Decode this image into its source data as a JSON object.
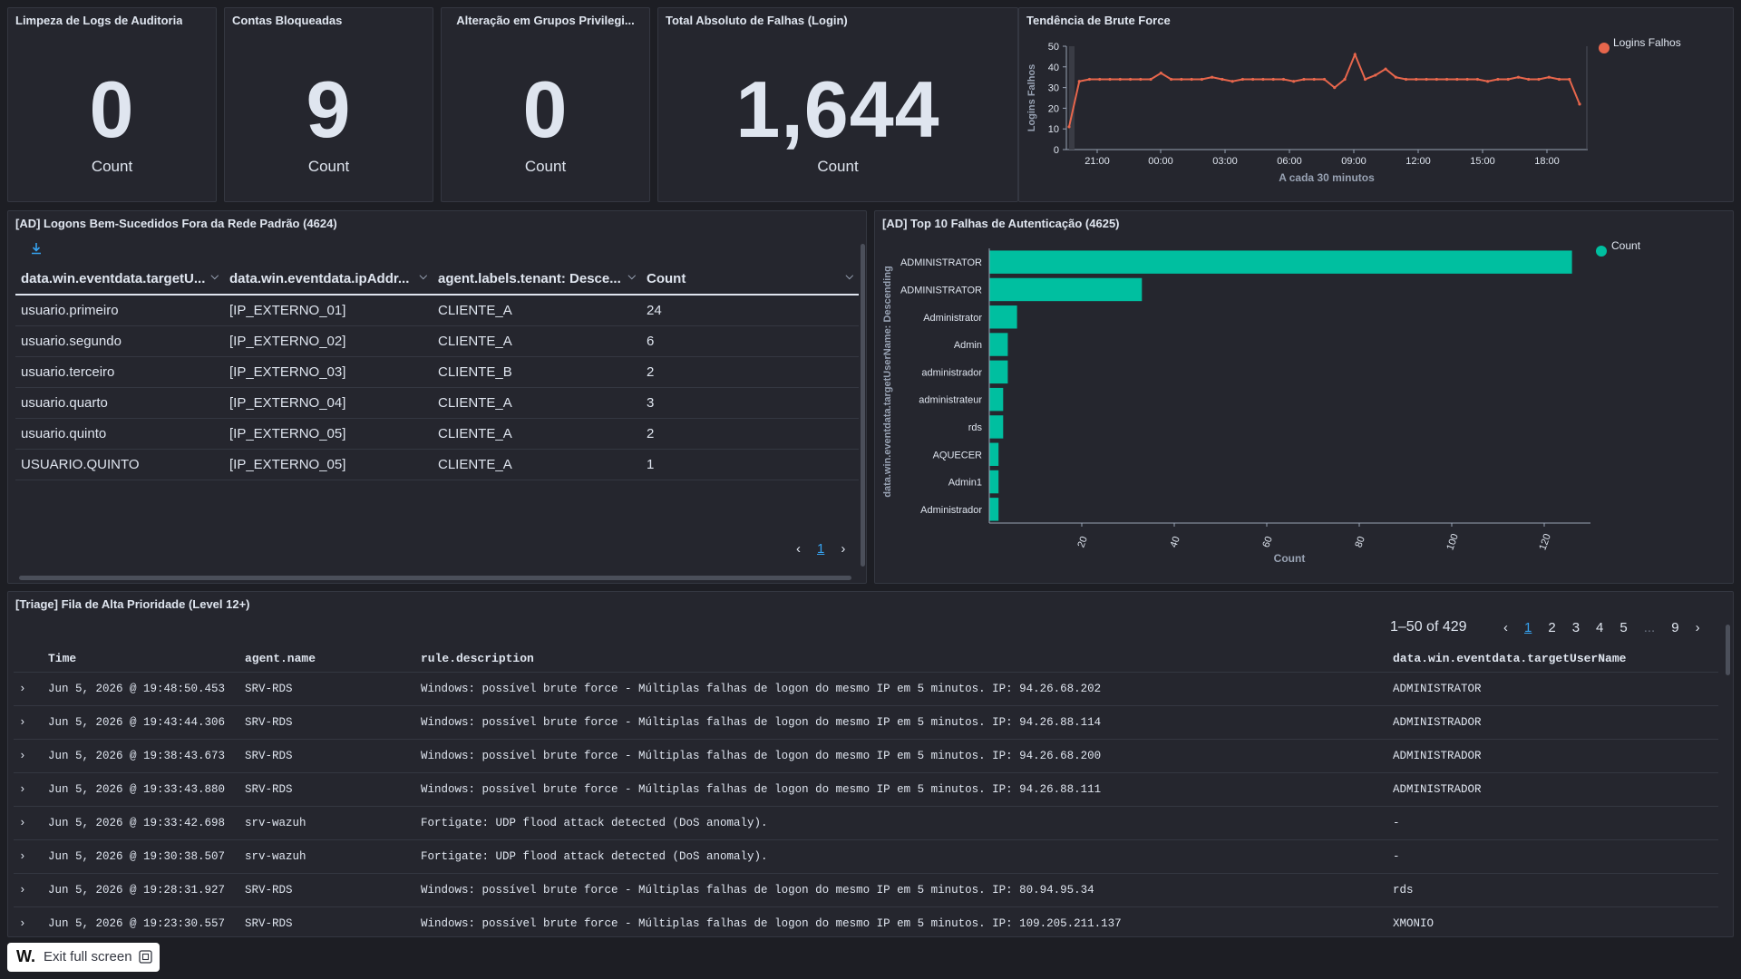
{
  "metrics": [
    {
      "title": "Limpeza de Logs de Auditoria",
      "value": "0",
      "label": "Count"
    },
    {
      "title": "Contas Bloqueadas",
      "value": "9",
      "label": "Count"
    },
    {
      "title": "Alteração em Grupos Privilegi...",
      "value": "0",
      "label": "Count"
    },
    {
      "title": "Total Absoluto de Falhas (Login)",
      "value": "1,644",
      "label": "Count"
    }
  ],
  "trend": {
    "title": "Tendência de Brute Force",
    "legend": "Logins Falhos",
    "ylabel": "Logins Falhos",
    "xlabel": "A cada 30 minutos",
    "color": "#e7664c"
  },
  "logons": {
    "title": "[AD] Logons Bem-Sucedidos Fora da Rede Padrão (4624)",
    "columns": [
      "data.win.eventdata.targetU...",
      "data.win.eventdata.ipAddr...",
      "agent.labels.tenant: Desce...",
      "Count"
    ],
    "rows": [
      [
        "usuario.primeiro",
        "[IP_EXTERNO_01]",
        "CLIENTE_A",
        "24"
      ],
      [
        "usuario.segundo",
        "[IP_EXTERNO_02]",
        "CLIENTE_A",
        "6"
      ],
      [
        "usuario.terceiro",
        "[IP_EXTERNO_03]",
        "CLIENTE_B",
        "2"
      ],
      [
        "usuario.quarto",
        "[IP_EXTERNO_04]",
        "CLIENTE_A",
        "3"
      ],
      [
        "usuario.quinto",
        "[IP_EXTERNO_05]",
        "CLIENTE_A",
        "2"
      ],
      [
        "USUARIO.QUINTO",
        "[IP_EXTERNO_05]",
        "CLIENTE_A",
        "1"
      ]
    ],
    "page": "1"
  },
  "top10": {
    "title": "[AD] Top 10 Falhas de Autenticação (4625)",
    "legend": "Count",
    "ylabel": "data.win.eventdata.targetUserName: Descending",
    "xlabel": "Count",
    "color": "#00bfa0"
  },
  "triage": {
    "title": "[Triage] Fila de Alta Prioridade (Level 12+)",
    "range": "1–50 of 429",
    "pages": [
      "1",
      "2",
      "3",
      "4",
      "5",
      "...",
      "9"
    ],
    "columns": [
      "Time",
      "agent.name",
      "rule.description",
      "data.win.eventdata.targetUserName"
    ],
    "rows": [
      [
        "Jun 5, 2026 @ 19:48:50.453",
        "SRV-RDS",
        "Windows: possível brute force - Múltiplas falhas de logon do mesmo IP em 5 minutos. IP: 94.26.68.202",
        "ADMINISTRATOR"
      ],
      [
        "Jun 5, 2026 @ 19:43:44.306",
        "SRV-RDS",
        "Windows: possível brute force - Múltiplas falhas de logon do mesmo IP em 5 minutos. IP: 94.26.88.114",
        "ADMINISTRADOR"
      ],
      [
        "Jun 5, 2026 @ 19:38:43.673",
        "SRV-RDS",
        "Windows: possível brute force - Múltiplas falhas de logon do mesmo IP em 5 minutos. IP: 94.26.68.200",
        "ADMINISTRADOR"
      ],
      [
        "Jun 5, 2026 @ 19:33:43.880",
        "SRV-RDS",
        "Windows: possível brute force - Múltiplas falhas de logon do mesmo IP em 5 minutos. IP: 94.26.88.111",
        "ADMINISTRADOR"
      ],
      [
        "Jun 5, 2026 @ 19:33:42.698",
        "srv-wazuh",
        "Fortigate: UDP flood attack detected (DoS anomaly).",
        " -"
      ],
      [
        "Jun 5, 2026 @ 19:30:38.507",
        "srv-wazuh",
        "Fortigate: UDP flood attack detected (DoS anomaly).",
        " -"
      ],
      [
        "Jun 5, 2026 @ 19:28:31.927",
        "SRV-RDS",
        "Windows: possível brute force - Múltiplas falhas de logon do mesmo IP em 5 minutos. IP: 80.94.95.34",
        "rds"
      ],
      [
        "Jun 5, 2026 @ 19:23:30.557",
        "SRV-RDS",
        "Windows: possível brute force - Múltiplas falhas de logon do mesmo IP em 5 minutos. IP: 109.205.211.137",
        "XMONIO"
      ]
    ]
  },
  "exit_fullscreen": {
    "logo": "W.",
    "label": "Exit full screen"
  },
  "chart_data": [
    {
      "type": "line",
      "title": "Tendência de Brute Force",
      "xlabel": "A cada 30 minutos",
      "ylabel": "Logins Falhos",
      "ylim": [
        0,
        50
      ],
      "yticks": [
        0,
        10,
        20,
        30,
        40,
        50
      ],
      "xticks": [
        "21:00",
        "00:00",
        "03:00",
        "06:00",
        "09:00",
        "12:00",
        "15:00",
        "18:00"
      ],
      "series": [
        {
          "name": "Logins Falhos",
          "values": [
            11,
            33,
            34,
            34,
            34,
            34,
            34,
            34,
            34,
            37,
            34,
            34,
            34,
            34,
            35,
            34,
            33,
            34,
            34,
            34,
            34,
            34,
            33,
            34,
            34,
            34,
            30,
            34,
            46,
            34,
            36,
            39,
            35,
            34,
            34,
            34,
            34,
            34,
            34,
            34,
            34,
            33,
            34,
            34,
            35,
            34,
            34,
            35,
            34,
            34,
            22
          ]
        }
      ]
    },
    {
      "type": "bar",
      "orientation": "horizontal",
      "title": "[AD] Top 10 Falhas de Autenticação (4625)",
      "xlabel": "Count",
      "ylabel": "data.win.eventdata.targetUserName: Descending",
      "xlim": [
        0,
        130
      ],
      "xticks": [
        20,
        40,
        60,
        80,
        100,
        120
      ],
      "categories": [
        "ADMINISTRATOR",
        "ADMINISTRATOR",
        "Administrator",
        "Admin",
        "administrador",
        "administrateur",
        "rds",
        "AQUECER",
        "Admin1",
        "Administrador"
      ],
      "series": [
        {
          "name": "Count",
          "values": [
            126,
            33,
            6,
            4,
            4,
            3,
            3,
            2,
            2,
            2
          ]
        }
      ]
    }
  ]
}
